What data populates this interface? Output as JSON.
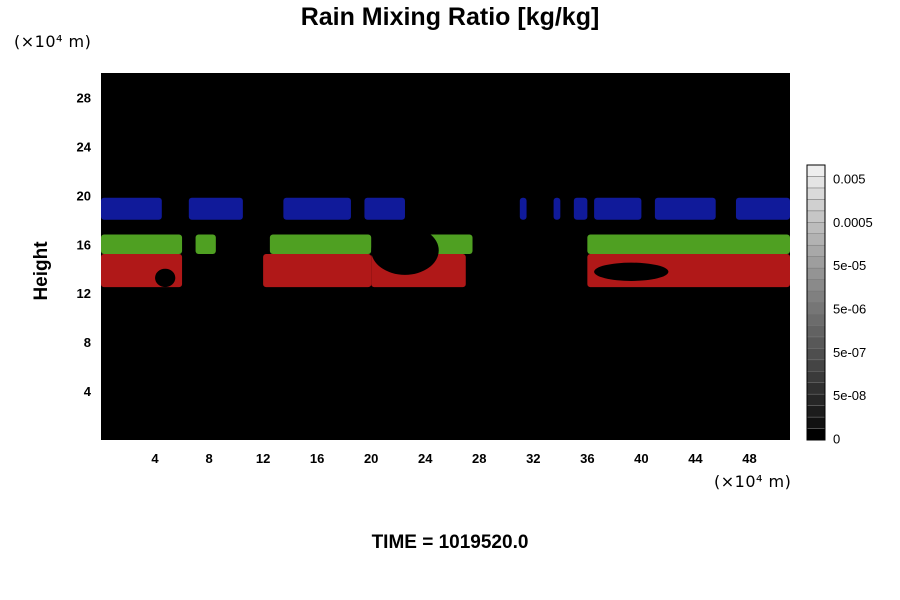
{
  "chart_data": {
    "type": "heatmap",
    "title": "Rain Mixing Ratio [kg/kg]",
    "ylabel": "Height",
    "x_unit": "(×10⁴ m)",
    "y_unit": "(×10⁴ m)",
    "xlim": [
      0,
      51
    ],
    "ylim": [
      0,
      30
    ],
    "x_ticks": [
      4,
      8,
      12,
      16,
      20,
      24,
      28,
      32,
      36,
      40,
      44,
      48
    ],
    "y_ticks": [
      4,
      8,
      12,
      16,
      20,
      24,
      28
    ],
    "colorbar": {
      "labels": [
        "0.005",
        "0.0005",
        "5e-05",
        "5e-06",
        "5e-07",
        "5e-08",
        "0"
      ],
      "colors": [
        "#000000",
        "#111111",
        "#1c1c1c",
        "#262626",
        "#303030",
        "#3a3a3a",
        "#444444",
        "#4e4e4e",
        "#585858",
        "#626262",
        "#6c6c6c",
        "#767676",
        "#808080",
        "#8a8a8a",
        "#949494",
        "#9e9e9e",
        "#a8a8a8",
        "#b2b2b2",
        "#bcbcbc",
        "#c6c6c6",
        "#d0d0d0",
        "#dadada",
        "#e4e4e4",
        "#eeeeee"
      ]
    },
    "bands": [
      {
        "color": "#101a9a",
        "y": [
          18,
          19.8
        ],
        "segments": [
          [
            0,
            4.5
          ],
          [
            6.5,
            10.5
          ],
          [
            13.5,
            18.5
          ],
          [
            19.5,
            22.5
          ],
          [
            31,
            31.5
          ],
          [
            33.5,
            34
          ],
          [
            35,
            36
          ],
          [
            36.5,
            40
          ],
          [
            41,
            45.5
          ],
          [
            47,
            51
          ]
        ]
      },
      {
        "color": "#4fa022",
        "y": [
          15.2,
          16.8
        ],
        "segments": [
          [
            0,
            6
          ],
          [
            7,
            8.5
          ],
          [
            12.5,
            20
          ],
          [
            24,
            27.5
          ],
          [
            36,
            51
          ]
        ]
      },
      {
        "color": "#b01818",
        "y": [
          12.5,
          15.2
        ],
        "segments": [
          [
            0,
            6
          ],
          [
            12,
            20
          ],
          [
            20,
            27
          ],
          [
            36,
            51
          ]
        ]
      }
    ],
    "dark_patches": [
      {
        "color": "#000000",
        "segments": [
          [
            20,
            25,
            13.5,
            17.5
          ],
          [
            4,
            5.5,
            12.5,
            14
          ],
          [
            36.5,
            42,
            13,
            14.5
          ]
        ]
      }
    ]
  },
  "footer": {
    "time_label": "TIME = 1019520.0"
  }
}
